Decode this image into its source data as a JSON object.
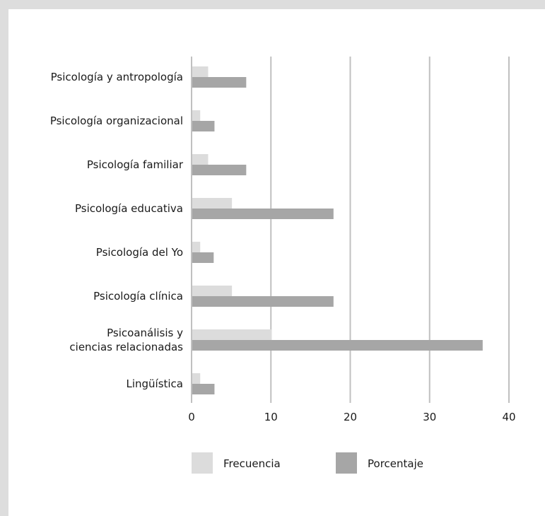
{
  "colors": {
    "frame": "#dddddd",
    "grid": "#c0c0c0",
    "frecuencia": "#dcdcdc",
    "porcentaje": "#a6a6a6",
    "text": "#1a1a1a"
  },
  "chart_data": {
    "type": "bar",
    "orientation": "horizontal",
    "title": "",
    "xlabel": "",
    "ylabel": "",
    "xlim": [
      0,
      40
    ],
    "xticks": [
      "0",
      "10",
      "20",
      "30",
      "40"
    ],
    "grid": true,
    "legend_position": "bottom",
    "categories": [
      [
        "Psicología  y antropología"
      ],
      [
        "Psicología organizacional"
      ],
      [
        "Psicología familiar"
      ],
      [
        "Psicología educativa"
      ],
      [
        "Psicología del Yo"
      ],
      [
        "Psicología clínica"
      ],
      [
        "Psicoanálisis y",
        "ciencias relacionadas"
      ],
      [
        "Lingüística"
      ]
    ],
    "series": [
      {
        "name": "Frecuencia",
        "values": [
          2,
          1,
          2,
          5,
          1,
          5,
          10,
          1
        ]
      },
      {
        "name": "Porcentaje",
        "values": [
          6.8,
          2.8,
          6.8,
          17.8,
          2.7,
          17.8,
          36.6,
          2.8
        ]
      }
    ]
  }
}
